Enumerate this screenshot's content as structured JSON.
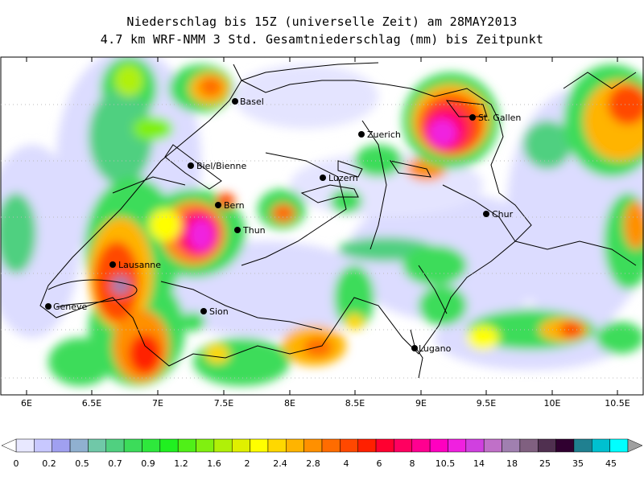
{
  "title_line1": "Niederschlag bis 15Z (universelle Zeit) am 28MAY2013",
  "title_line2": "4.7 km WRF-NMM 3 Std. Gesamtniederschlag (mm) bis Zeitpunkt",
  "x_axis_ticks": [
    "6E",
    "6.5E",
    "7E",
    "7.5E",
    "8E",
    "8.5E",
    "9E",
    "9.5E",
    "10E",
    "10.5E"
  ],
  "cities": [
    {
      "name": "Basel"
    },
    {
      "name": "Zuerich"
    },
    {
      "name": "St. Gallen"
    },
    {
      "name": "Biel/Bienne"
    },
    {
      "name": "Luzern"
    },
    {
      "name": "Bern"
    },
    {
      "name": "Thun"
    },
    {
      "name": "Chur"
    },
    {
      "name": "Lausanne"
    },
    {
      "name": "Geneve"
    },
    {
      "name": "Sion"
    },
    {
      "name": "Lugano"
    }
  ],
  "legend": {
    "labels": [
      "0",
      "0.2",
      "0.5",
      "0.7",
      "0.9",
      "1.2",
      "1.6",
      "2",
      "2.4",
      "2.8",
      "4",
      "6",
      "8",
      "10.5",
      "14",
      "18",
      "25",
      "35",
      "45"
    ],
    "colors": [
      "#e8e8ff",
      "#c8c8ff",
      "#a0a0f0",
      "#90b0d0",
      "#70c8a8",
      "#50d080",
      "#3cdc5a",
      "#2ee83c",
      "#20f020",
      "#50f018",
      "#80f010",
      "#b0f008",
      "#e0f000",
      "#ffff00",
      "#ffd800",
      "#ffb400",
      "#ff9000",
      "#ff6c00",
      "#ff4800",
      "#ff2000",
      "#ff0030",
      "#ff0060",
      "#ff0090",
      "#ff00c0",
      "#f020e0",
      "#d040e0",
      "#c070c8",
      "#a080b0",
      "#806080",
      "#503050",
      "#300030",
      "#208090",
      "#00c0d0",
      "#00ffff"
    ]
  }
}
